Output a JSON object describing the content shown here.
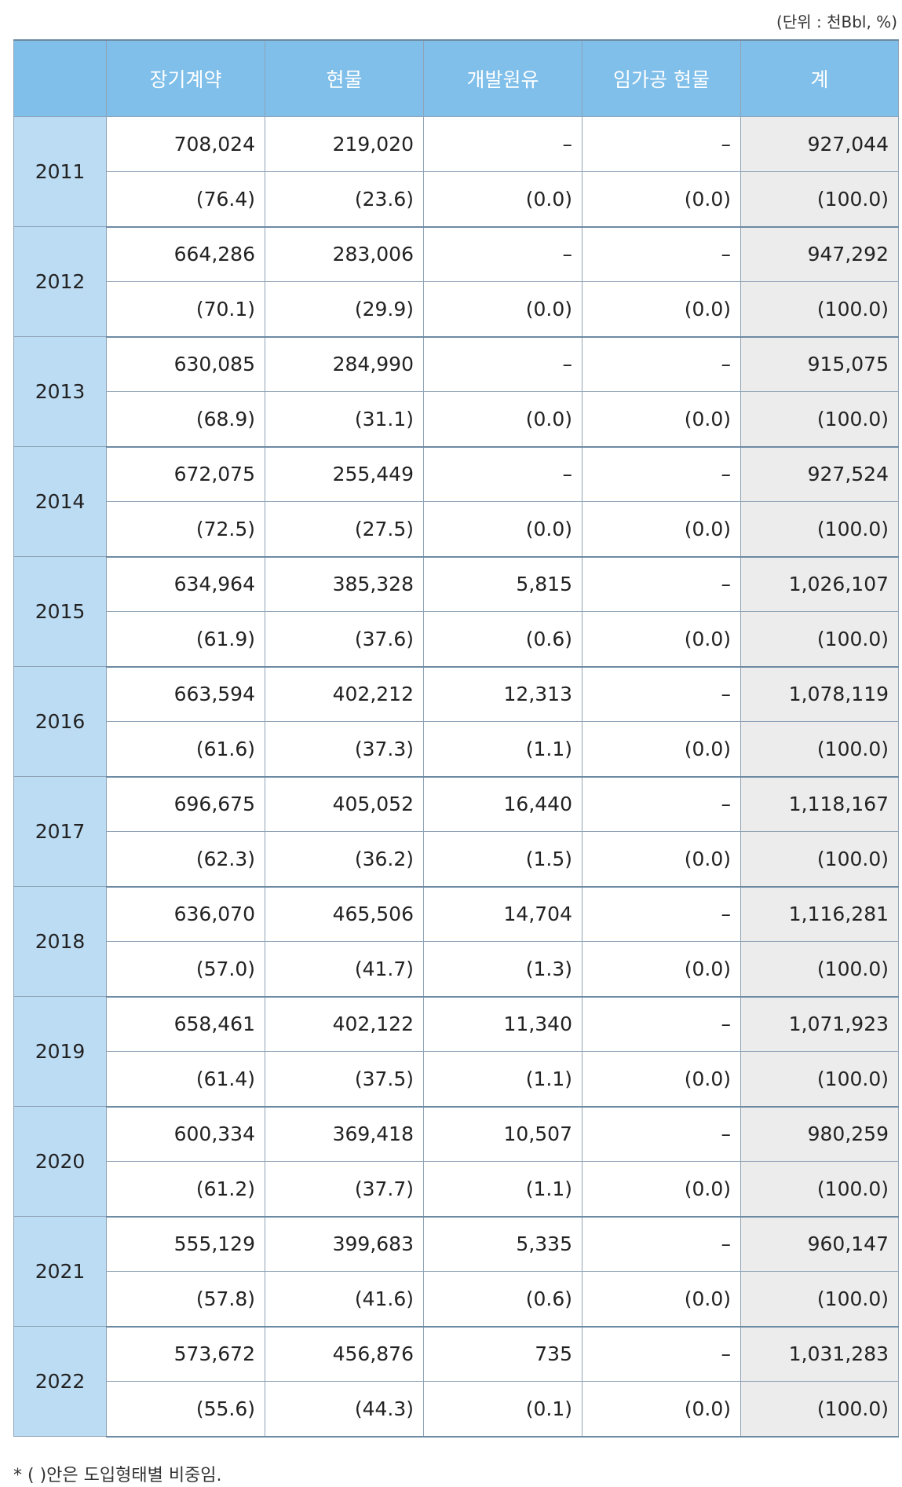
{
  "unit": "(단위 : 천Bbl, %)",
  "headers": [
    "장기계약",
    "현물",
    "개발원유",
    "임가공 현물",
    "계"
  ],
  "rows": [
    {
      "year": "2011",
      "values": [
        "708,024",
        "219,020",
        "–",
        "–",
        "927,044"
      ],
      "shares": [
        "(76.4)",
        "(23.6)",
        "(0.0)",
        "(0.0)",
        "(100.0)"
      ]
    },
    {
      "year": "2012",
      "values": [
        "664,286",
        "283,006",
        "–",
        "–",
        "947,292"
      ],
      "shares": [
        "(70.1)",
        "(29.9)",
        "(0.0)",
        "(0.0)",
        "(100.0)"
      ]
    },
    {
      "year": "2013",
      "values": [
        "630,085",
        "284,990",
        "–",
        "–",
        "915,075"
      ],
      "shares": [
        "(68.9)",
        "(31.1)",
        "(0.0)",
        "(0.0)",
        "(100.0)"
      ]
    },
    {
      "year": "2014",
      "values": [
        "672,075",
        "255,449",
        "–",
        "–",
        "927,524"
      ],
      "shares": [
        "(72.5)",
        "(27.5)",
        "(0.0)",
        "(0.0)",
        "(100.0)"
      ]
    },
    {
      "year": "2015",
      "values": [
        "634,964",
        "385,328",
        "5,815",
        "–",
        "1,026,107"
      ],
      "shares": [
        "(61.9)",
        "(37.6)",
        "(0.6)",
        "(0.0)",
        "(100.0)"
      ]
    },
    {
      "year": "2016",
      "values": [
        "663,594",
        "402,212",
        "12,313",
        "–",
        "1,078,119"
      ],
      "shares": [
        "(61.6)",
        "(37.3)",
        "(1.1)",
        "(0.0)",
        "(100.0)"
      ]
    },
    {
      "year": "2017",
      "values": [
        "696,675",
        "405,052",
        "16,440",
        "–",
        "1,118,167"
      ],
      "shares": [
        "(62.3)",
        "(36.2)",
        "(1.5)",
        "(0.0)",
        "(100.0)"
      ]
    },
    {
      "year": "2018",
      "values": [
        "636,070",
        "465,506",
        "14,704",
        "–",
        "1,116,281"
      ],
      "shares": [
        "(57.0)",
        "(41.7)",
        "(1.3)",
        "(0.0)",
        "(100.0)"
      ]
    },
    {
      "year": "2019",
      "values": [
        "658,461",
        "402,122",
        "11,340",
        "–",
        "1,071,923"
      ],
      "shares": [
        "(61.4)",
        "(37.5)",
        "(1.1)",
        "(0.0)",
        "(100.0)"
      ]
    },
    {
      "year": "2020",
      "values": [
        "600,334",
        "369,418",
        "10,507",
        "–",
        "980,259"
      ],
      "shares": [
        "(61.2)",
        "(37.7)",
        "(1.1)",
        "(0.0)",
        "(100.0)"
      ]
    },
    {
      "year": "2021",
      "values": [
        "555,129",
        "399,683",
        "5,335",
        "–",
        "960,147"
      ],
      "shares": [
        "(57.8)",
        "(41.6)",
        "(0.6)",
        "(0.0)",
        "(100.0)"
      ]
    },
    {
      "year": "2022",
      "values": [
        "573,672",
        "456,876",
        "735",
        "–",
        "1,031,283"
      ],
      "shares": [
        "(55.6)",
        "(44.3)",
        "(0.1)",
        "(0.0)",
        "(100.0)"
      ]
    }
  ],
  "note": "* (  )안은 도입형태별 비중임."
}
